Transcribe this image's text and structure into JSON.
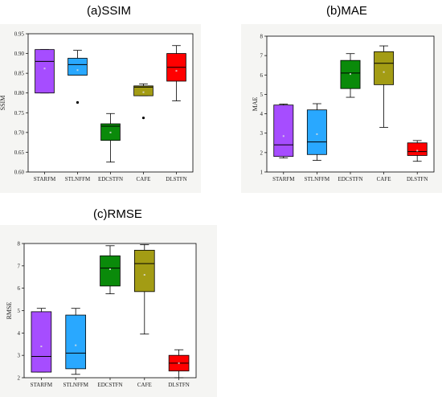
{
  "titles": {
    "ssim": "(a)SSIM",
    "mae": "(b)MAE",
    "rmse": "(c)RMSE"
  },
  "colors": {
    "STARFM": "#a64dff",
    "STLNFFM": "#29a8ff",
    "EDCSTFN": "#0a8a0a",
    "CAFE": "#a39c14",
    "DLSTFN": "#ff0000"
  },
  "chart_data": [
    {
      "id": "ssim",
      "type": "box",
      "title": "(a)SSIM",
      "ylabel": "SSIM",
      "ylim": [
        0.6,
        0.95
      ],
      "yticks": [
        0.6,
        0.65,
        0.7,
        0.75,
        0.8,
        0.85,
        0.9,
        0.95
      ],
      "categories": [
        "STARFM",
        "STLNFFM",
        "EDCSTFN",
        "CAFE",
        "DLSTFN"
      ],
      "boxes": [
        {
          "name": "STARFM",
          "min": 0.8,
          "q1": 0.8,
          "median": 0.88,
          "q3": 0.91,
          "max": 0.91,
          "mean": 0.862,
          "outliers": []
        },
        {
          "name": "STLNFFM",
          "min": 0.845,
          "q1": 0.845,
          "median": 0.872,
          "q3": 0.888,
          "max": 0.908,
          "mean": 0.858,
          "outliers": [
            0.776
          ]
        },
        {
          "name": "EDCSTFN",
          "min": 0.625,
          "q1": 0.68,
          "median": 0.716,
          "q3": 0.722,
          "max": 0.748,
          "mean": 0.7,
          "outliers": []
        },
        {
          "name": "CAFE",
          "min": 0.793,
          "q1": 0.793,
          "median": 0.815,
          "q3": 0.818,
          "max": 0.823,
          "mean": 0.802,
          "outliers": [
            0.737
          ]
        },
        {
          "name": "DLSTFN",
          "min": 0.78,
          "q1": 0.83,
          "median": 0.865,
          "q3": 0.9,
          "max": 0.92,
          "mean": 0.856,
          "outliers": []
        }
      ]
    },
    {
      "id": "mae",
      "type": "box",
      "title": "(b)MAE",
      "ylabel": "MAE",
      "ylim": [
        1,
        8
      ],
      "yticks": [
        1,
        2,
        3,
        4,
        5,
        6,
        7,
        8
      ],
      "categories": [
        "STARFM",
        "STLNFFM",
        "EDCSTFN",
        "CAFE",
        "DLSTFN"
      ],
      "boxes": [
        {
          "name": "STARFM",
          "min": 1.72,
          "q1": 1.8,
          "median": 2.4,
          "q3": 4.45,
          "max": 4.5,
          "mean": 2.85,
          "outliers": []
        },
        {
          "name": "STLNFFM",
          "min": 1.6,
          "q1": 1.9,
          "median": 2.55,
          "q3": 4.2,
          "max": 4.52,
          "mean": 2.95,
          "outliers": []
        },
        {
          "name": "EDCSTFN",
          "min": 4.85,
          "q1": 5.3,
          "median": 6.1,
          "q3": 6.75,
          "max": 7.1,
          "mean": 6.05,
          "outliers": []
        },
        {
          "name": "CAFE",
          "min": 3.3,
          "q1": 5.5,
          "median": 6.6,
          "q3": 7.2,
          "max": 7.5,
          "mean": 6.15,
          "outliers": []
        },
        {
          "name": "DLSTFN",
          "min": 1.55,
          "q1": 1.85,
          "median": 2.05,
          "q3": 2.5,
          "max": 2.62,
          "mean": 2.1,
          "outliers": []
        }
      ]
    },
    {
      "id": "rmse",
      "type": "box",
      "title": "(c)RMSE",
      "ylabel": "RMSE",
      "ylim": [
        2,
        8
      ],
      "yticks": [
        2,
        3,
        4,
        5,
        6,
        7,
        8
      ],
      "categories": [
        "STARFM",
        "STLNFFM",
        "EDCSTFN",
        "CAFE",
        "DLSTFN"
      ],
      "boxes": [
        {
          "name": "STARFM",
          "min": 2.25,
          "q1": 2.25,
          "median": 2.95,
          "q3": 4.95,
          "max": 5.1,
          "mean": 3.4,
          "outliers": []
        },
        {
          "name": "STLNFFM",
          "min": 2.15,
          "q1": 2.4,
          "median": 3.1,
          "q3": 4.8,
          "max": 5.1,
          "mean": 3.45,
          "outliers": []
        },
        {
          "name": "EDCSTFN",
          "min": 5.75,
          "q1": 6.1,
          "median": 6.9,
          "q3": 7.45,
          "max": 7.9,
          "mean": 6.85,
          "outliers": []
        },
        {
          "name": "CAFE",
          "min": 3.95,
          "q1": 5.85,
          "median": 7.1,
          "q3": 7.7,
          "max": 7.95,
          "mean": 6.6,
          "outliers": []
        },
        {
          "name": "DLSTFN",
          "min": 2.0,
          "q1": 2.3,
          "median": 2.65,
          "q3": 3.0,
          "max": 3.25,
          "mean": 2.65,
          "outliers": []
        }
      ]
    }
  ]
}
